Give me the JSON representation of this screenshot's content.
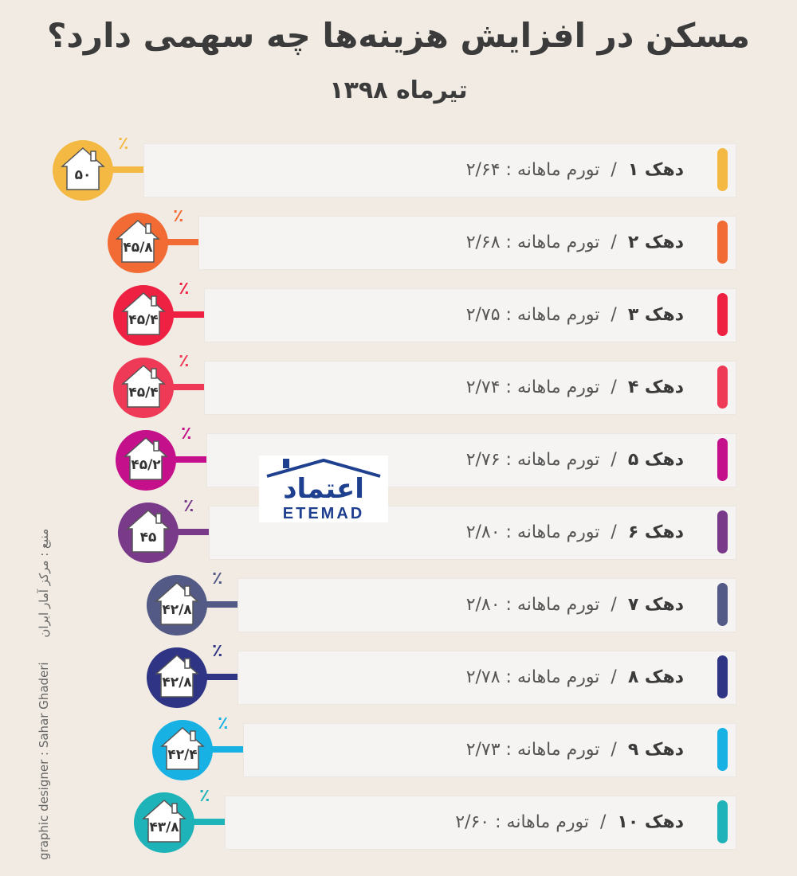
{
  "chart_data": {
    "type": "bar",
    "title": "مسکن در افزایش هزینه‌ها چه سهمی دارد؟",
    "subtitle": "تیرماه ۱۳۹۸",
    "categories": [
      "دهک ۱",
      "دهک ۲",
      "دهک ۳",
      "دهک ۴",
      "دهک ۵",
      "دهک ۶",
      "دهک ۷",
      "دهک ۸",
      "دهک ۹",
      "دهک ۱۰"
    ],
    "inflation_label": "تورم ماهانه :",
    "series": [
      {
        "name": "تورم ماهانه",
        "values": [
          2.64,
          2.68,
          2.75,
          2.74,
          2.76,
          2.8,
          2.8,
          2.78,
          2.73,
          2.6
        ],
        "labels": [
          "۲/۶۴",
          "۲/۶۸",
          "۲/۷۵",
          "۲/۷۴",
          "۲/۷۶",
          "۲/۸۰",
          "۲/۸۰",
          "۲/۷۸",
          "۲/۷۳",
          "۲/۶۰"
        ]
      },
      {
        "name": "",
        "values": [
          50,
          45.8,
          45.4,
          45.4,
          45.2,
          45,
          42.8,
          42.8,
          42.4,
          43.8
        ],
        "labels": [
          "۵۰",
          "۴۵/۸",
          "۴۵/۴",
          "۴۵/۴",
          "۴۵/۲",
          "۴۵",
          "۴۲/۸",
          "۴۲/۸",
          "۴۲/۴",
          "۴۳/۸"
        ]
      }
    ],
    "percent_sign": "٪",
    "colors": [
      "#f4b942",
      "#f26b35",
      "#ee2143",
      "#ef3a57",
      "#c4108b",
      "#7a3a8a",
      "#525a85",
      "#2f3584",
      "#17b1e3",
      "#1eb3b8"
    ],
    "ylim": [
      40,
      52
    ]
  },
  "logo": {
    "name": "etemad-logo",
    "text_fa": "اعتماد",
    "text_en": "ETEMAD"
  },
  "credits": {
    "designer": "graphic designer : Sahar Ghaderi",
    "source": "منبع : مرکز آمار ایران"
  }
}
